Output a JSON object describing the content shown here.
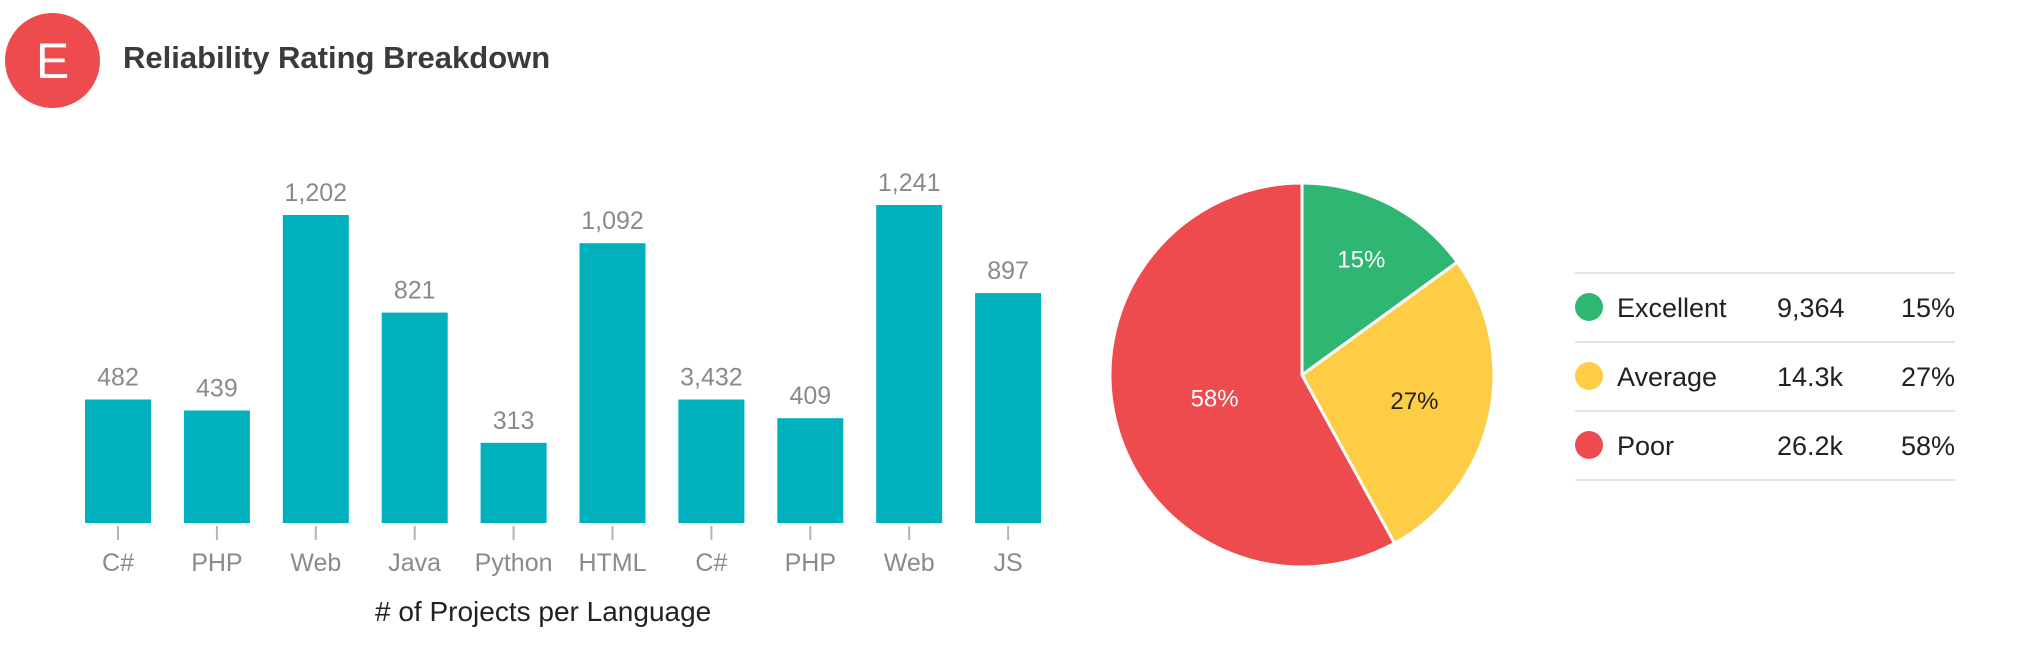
{
  "header": {
    "badge_letter": "E",
    "title": "Reliability Rating Breakdown"
  },
  "colors": {
    "bar": "#00b0bc",
    "excellent": "#2fb672",
    "average": "#fdcd45",
    "poor": "#ee4b4f",
    "badge": "#ee4b4f"
  },
  "chart_data": [
    {
      "type": "bar",
      "title": "",
      "xlabel": "# of Projects per Language",
      "ylabel": "",
      "categories": [
        "C#",
        "PHP",
        "Web",
        "Java",
        "Python",
        "HTML",
        "C#",
        "PHP",
        "Web",
        "JS"
      ],
      "value_labels": [
        "482",
        "439",
        "1,202",
        "821",
        "313",
        "1,092",
        "3,432",
        "409",
        "1,241",
        "897"
      ],
      "values": [
        482,
        439,
        1202,
        821,
        313,
        1092,
        3432,
        409,
        1241,
        897
      ],
      "grid": false
    },
    {
      "type": "pie",
      "slices": [
        {
          "name": "Excellent",
          "count": "9,364",
          "value": 15,
          "label": "15%",
          "color": "#2fb672"
        },
        {
          "name": "Average",
          "count": "14.3k",
          "value": 27,
          "label": "27%",
          "color": "#fdcd45"
        },
        {
          "name": "Poor",
          "count": "26.2k",
          "value": 58,
          "label": "58%",
          "color": "#ee4b4f"
        }
      ],
      "legend_position": "right"
    }
  ]
}
